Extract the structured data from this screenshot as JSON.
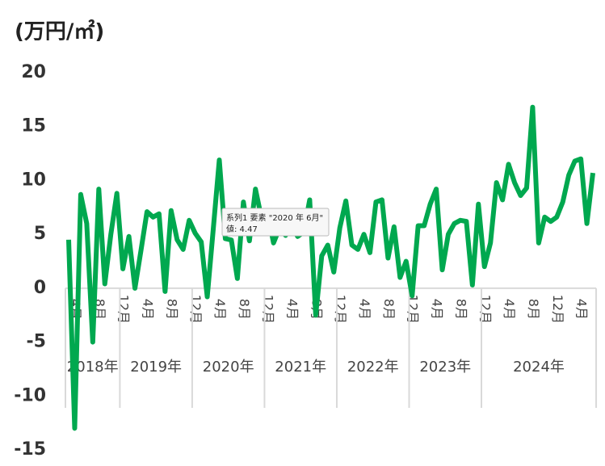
{
  "chart_data": {
    "type": "line",
    "y_axis_title": "(万円/㎡)",
    "categories": [
      null,
      "4月",
      null,
      null,
      null,
      "8月",
      null,
      null,
      null,
      "12月",
      null,
      null,
      null,
      "4月",
      null,
      null,
      null,
      "8月",
      null,
      null,
      null,
      "12月",
      null,
      null,
      null,
      "4月",
      null,
      null,
      null,
      "8月",
      null,
      null,
      null,
      "12月",
      null,
      null,
      null,
      "4月",
      null,
      null,
      null,
      "8月",
      null,
      null,
      null,
      "12月",
      null,
      null,
      null,
      "4月",
      null,
      null,
      null,
      "8月",
      null,
      null,
      null,
      "12月",
      null,
      null,
      null,
      "4月",
      null,
      null,
      null,
      "8月",
      null,
      null,
      null,
      "12月",
      null,
      null,
      null,
      "4月",
      null,
      null,
      null,
      "8月",
      null,
      null,
      null,
      "12月",
      null,
      null,
      null,
      "4月",
      null,
      null
    ],
    "year_groups": [
      {
        "label": "2018年",
        "count": 9
      },
      {
        "label": "2019年",
        "count": 12
      },
      {
        "label": "2020年",
        "count": 12
      },
      {
        "label": "2021年",
        "count": 12
      },
      {
        "label": "2022年",
        "count": 12
      },
      {
        "label": "2023年",
        "count": 12
      },
      {
        "label": "2024年",
        "count": 19
      }
    ],
    "series": [
      {
        "color": "#00a84f",
        "values": [
          4.5,
          -13,
          8.7,
          6,
          -5,
          9.2,
          0.4,
          5,
          8.8,
          1.8,
          4.8,
          0,
          3.5,
          7.1,
          6.6,
          6.9,
          -0.3,
          7.2,
          4.5,
          3.6,
          6.3,
          5.1,
          4.3,
          -0.8,
          5.5,
          11.9,
          4.6,
          4.47,
          0.9,
          8,
          4.4,
          9.2,
          6.5,
          7,
          4.2,
          5.6,
          4.9,
          5.8,
          4.8,
          5.2,
          8.2,
          -2.5,
          3,
          4,
          1.5,
          5.6,
          8.1,
          4,
          3.6,
          5,
          3.3,
          8,
          8.2,
          2.8,
          5.7,
          1,
          2.5,
          -0.7,
          5.8,
          5.8,
          7.8,
          9.2,
          1.7,
          5,
          6,
          6.3,
          6.2,
          0.3,
          7.8,
          2,
          4.2,
          9.8,
          8.2,
          11.5,
          9.8,
          8.6,
          9.3,
          16.8,
          4.2,
          6.6,
          6.2,
          6.6,
          8,
          10.5,
          11.8,
          12,
          6,
          10.7
        ]
      }
    ],
    "ylim": [
      -15,
      20
    ],
    "yticks": [
      -15,
      -10,
      -5,
      0,
      5,
      10,
      15,
      20
    ],
    "tooltip": {
      "title": "系列1 要素 \"2020 年 6月\"",
      "text": "値: 4.47"
    }
  }
}
